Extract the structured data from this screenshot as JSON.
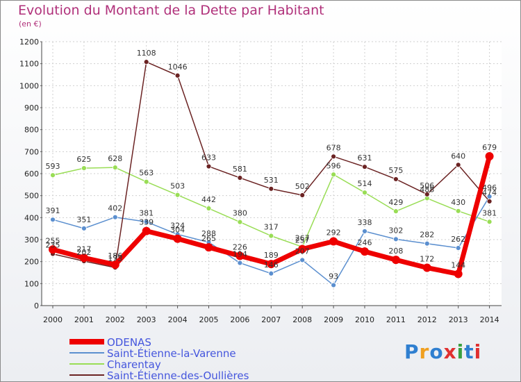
{
  "title": "Evolution du Montant de la Dette par Habitant",
  "subtitle": "(en €)",
  "logo": {
    "text": "Proxiti",
    "colors": [
      "#2f7fd0",
      "#f0a020",
      "#2f7fd0",
      "#e03030",
      "#3aa040",
      "#2f7fd0",
      "#e03030"
    ]
  },
  "chart_data": {
    "type": "line",
    "x": [
      "2000",
      "2001",
      "2002",
      "2003",
      "2004",
      "2005",
      "2006",
      "2007",
      "2008",
      "2009",
      "2010",
      "2011",
      "2012",
      "2013",
      "2014"
    ],
    "ylim": [
      0,
      1200
    ],
    "yticks": [
      0,
      100,
      200,
      300,
      400,
      500,
      600,
      700,
      800,
      900,
      1000,
      1100,
      1200
    ],
    "legend_position": "bottom-left",
    "grid": true,
    "series": [
      {
        "name": "ODENAS",
        "color": "#ee0000",
        "values": [
          255,
          217,
          186,
          339,
          304,
          265,
          226,
          189,
          257,
          292,
          246,
          208,
          172,
          144,
          679
        ]
      },
      {
        "name": "Saint-Étienne-la-Varenne",
        "color": "#5b8fcf",
        "values": [
          391,
          351,
          402,
          381,
          324,
          288,
          194,
          146,
          207,
          93,
          338,
          302,
          282,
          262,
          496
        ]
      },
      {
        "name": "Charentay",
        "color": "#99dd55",
        "values": [
          593,
          625,
          628,
          563,
          503,
          442,
          380,
          317,
          267,
          596,
          514,
          429,
          488,
          430,
          381
        ]
      },
      {
        "name": "Saint-Étienne-des-Oullières",
        "color": "#6b2323",
        "values": [
          235,
          202,
          173,
          1108,
          1046,
          633,
          581,
          531,
          502,
          678,
          631,
          575,
          506,
          640,
          474
        ]
      }
    ]
  }
}
